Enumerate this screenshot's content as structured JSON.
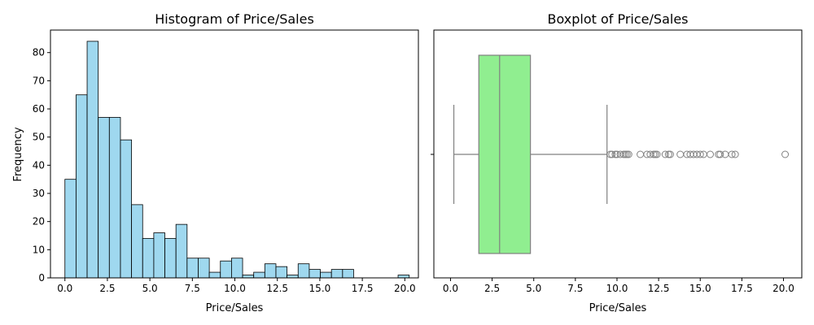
{
  "chart_data": [
    {
      "type": "bar",
      "subtype": "histogram",
      "title": "Histogram of Price/Sales",
      "xlabel": "Price/Sales",
      "ylabel": "Frequency",
      "xlim": [
        -0.85,
        20.8
      ],
      "ylim": [
        0,
        88
      ],
      "xticks": [
        "0.0",
        "2.5",
        "5.0",
        "7.5",
        "10.0",
        "12.5",
        "15.0",
        "17.5",
        "20.0"
      ],
      "xtick_values": [
        0,
        2.5,
        5,
        7.5,
        10,
        12.5,
        15,
        17.5,
        20
      ],
      "yticks": [
        "0",
        "10",
        "20",
        "30",
        "40",
        "50",
        "60",
        "70",
        "80"
      ],
      "ytick_values": [
        0,
        10,
        20,
        30,
        40,
        50,
        60,
        70,
        80
      ],
      "bin_start": 0.0,
      "bin_width": 0.6535,
      "values": [
        35,
        65,
        84,
        57,
        57,
        49,
        26,
        14,
        16,
        14,
        19,
        7,
        7,
        2,
        6,
        7,
        1,
        2,
        5,
        4,
        1,
        5,
        3,
        2,
        3,
        3,
        0,
        0,
        0,
        0,
        1
      ],
      "colors": {
        "bar_fill": "#87ceeb",
        "bar_edge": "#000000"
      }
    },
    {
      "type": "boxplot",
      "title": "Boxplot of Price/Sales",
      "xlabel": "Price/Sales",
      "xlim": [
        -1.0,
        21.1
      ],
      "xticks": [
        "0.0",
        "2.5",
        "5.0",
        "7.5",
        "10.0",
        "12.5",
        "15.0",
        "17.5",
        "20.0"
      ],
      "xtick_values": [
        0,
        2.5,
        5,
        7.5,
        10,
        12.5,
        15,
        17.5,
        20
      ],
      "whisker_low": 0.2,
      "q1": 1.7,
      "median": 2.95,
      "q3": 4.8,
      "whisker_high": 9.4,
      "outliers": [
        9.6,
        9.7,
        9.9,
        10.0,
        10.2,
        10.4,
        10.5,
        10.6,
        10.7,
        11.4,
        11.8,
        12.0,
        12.2,
        12.3,
        12.4,
        12.9,
        13.1,
        13.2,
        13.8,
        14.2,
        14.4,
        14.6,
        14.8,
        15.0,
        15.2,
        15.6,
        16.1,
        16.2,
        16.5,
        16.9,
        17.1,
        20.1
      ],
      "colors": {
        "box_fill": "#90ee90",
        "box_edge": "#808080",
        "outlier_edge": "#808080"
      }
    }
  ]
}
